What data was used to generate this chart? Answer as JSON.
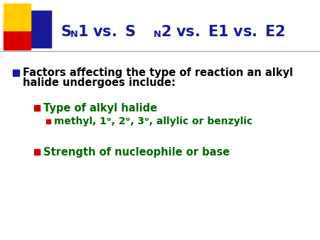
{
  "bg_color": "#ffffff",
  "title_color": "#1a1a99",
  "title_text_1": "S",
  "title_sub_N": "N",
  "title_text_2": "1 vs. S",
  "title_text_3": "N",
  "title_text_4": "2 vs. E1 vs. E2",
  "header_bar_color": "#555555",
  "bullet1_color": "#000000",
  "bullet1_line1": "Factors affecting the type of reaction an alkyl",
  "bullet1_line2": "halide undergoes include:",
  "sub_bullet1_color": "#006600",
  "sub_bullet1_text": "Type of alkyl halide",
  "sub_sub_bullet1_color": "#006600",
  "sub_sub_bullet1_text": "methyl, 1ᵒ, 2ᵒ, 3ᵒ, allylic or benzylic",
  "sub_bullet2_color": "#006600",
  "sub_bullet2_text": "Strength of nucleophile or base",
  "square_yellow": "#ffcc00",
  "square_red": "#dd0000",
  "square_blue": "#1a1a99",
  "bullet_square_blue": "#1a1a99",
  "bullet_square_red": "#cc0000",
  "fig_width": 4.5,
  "fig_height": 3.38,
  "dpi": 100
}
